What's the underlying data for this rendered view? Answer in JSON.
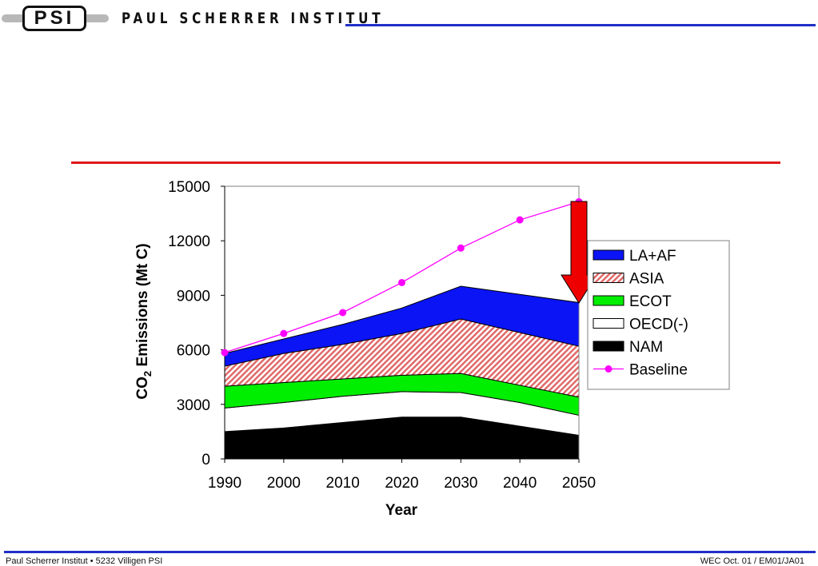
{
  "header": {
    "logo_text": "PSI",
    "institute_name": "PAUL SCHERRER INSTITUT"
  },
  "footer": {
    "left_text": "Paul Scherrer Institut • 5232 Villigen PSI",
    "right_text": "WEC Oct. 01 / EM01/JA01"
  },
  "colors": {
    "header_line": "#1f2fc8",
    "divider_line": "#e01818",
    "la_af": "#0a14f5",
    "asia": "#e87878",
    "ecot": "#00ee00",
    "oecd": "#ffffff",
    "nam": "#000000",
    "baseline": "#ff00ff",
    "arrow": "#ee0000"
  },
  "chart_data": {
    "type": "area",
    "stacked": true,
    "x": [
      1990,
      2000,
      2010,
      2020,
      2030,
      2040,
      2050
    ],
    "xlabel": "Year",
    "ylabel_main": "CO",
    "ylabel_sub": "2",
    "ylabel_rest": " Emissions (Mt C)",
    "ylim": [
      0,
      15000
    ],
    "yticks": [
      0,
      3000,
      6000,
      9000,
      12000,
      15000
    ],
    "legend_position": "right",
    "grid": false,
    "series": [
      {
        "name": "NAM",
        "values": [
          1500,
          1700,
          2000,
          2300,
          2300,
          1800,
          1300
        ]
      },
      {
        "name": "OECD(-)",
        "values": [
          1300,
          1400,
          1450,
          1400,
          1350,
          1300,
          1100
        ]
      },
      {
        "name": "ECOT",
        "values": [
          1200,
          1100,
          950,
          900,
          1050,
          950,
          1000
        ]
      },
      {
        "name": "ASIA",
        "values": [
          1100,
          1600,
          1900,
          2300,
          3000,
          2900,
          2800
        ]
      },
      {
        "name": "LA+AF",
        "values": [
          700,
          800,
          1100,
          1400,
          1800,
          2100,
          2400
        ]
      }
    ],
    "baseline": {
      "name": "Baseline",
      "values": [
        5850,
        6900,
        8050,
        9700,
        11600,
        13150,
        14150
      ]
    },
    "legend_order": [
      "LA+AF",
      "ASIA",
      "ECOT",
      "OECD(-)",
      "NAM",
      "Baseline"
    ]
  }
}
